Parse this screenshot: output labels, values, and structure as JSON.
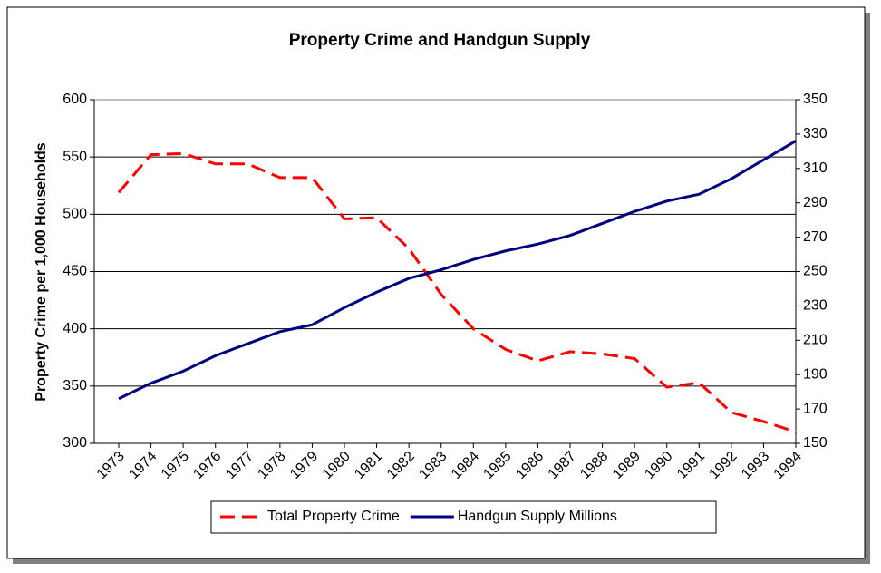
{
  "chart_data": {
    "type": "line",
    "title": "Property Crime and Handgun Supply",
    "y_label": "Property Crime per 1,000 Households",
    "categories": [
      "1973",
      "1974",
      "1975",
      "1976",
      "1977",
      "1978",
      "1979",
      "1980",
      "1981",
      "1982",
      "1983",
      "1984",
      "1985",
      "1986",
      "1987",
      "1988",
      "1989",
      "1990",
      "1991",
      "1992",
      "1993",
      "1994"
    ],
    "series": [
      {
        "name": "Total Property Crime",
        "color": "#ff0000",
        "dashed": true,
        "values": [
          519,
          552,
          553,
          544,
          544,
          532,
          532,
          496,
          497,
          470,
          430,
          400,
          382,
          372,
          380,
          378,
          374,
          349,
          353,
          327,
          319,
          310
        ]
      },
      {
        "name": "Handgun Supply Millions",
        "color": "#000080",
        "axis": "y2",
        "values": [
          176,
          185,
          192,
          201,
          208,
          215,
          219,
          229,
          238,
          246,
          251,
          257,
          262,
          266,
          271,
          278,
          285,
          291,
          295,
          304,
          315,
          326
        ]
      }
    ],
    "ylim": [
      300,
      600
    ],
    "yticks": [
      300,
      350,
      400,
      450,
      500,
      550,
      600
    ],
    "y2lim": [
      150,
      350
    ],
    "y2ticks": [
      150,
      170,
      190,
      210,
      230,
      250,
      270,
      290,
      310,
      330,
      350
    ],
    "grid": true,
    "legend": "bottom"
  }
}
